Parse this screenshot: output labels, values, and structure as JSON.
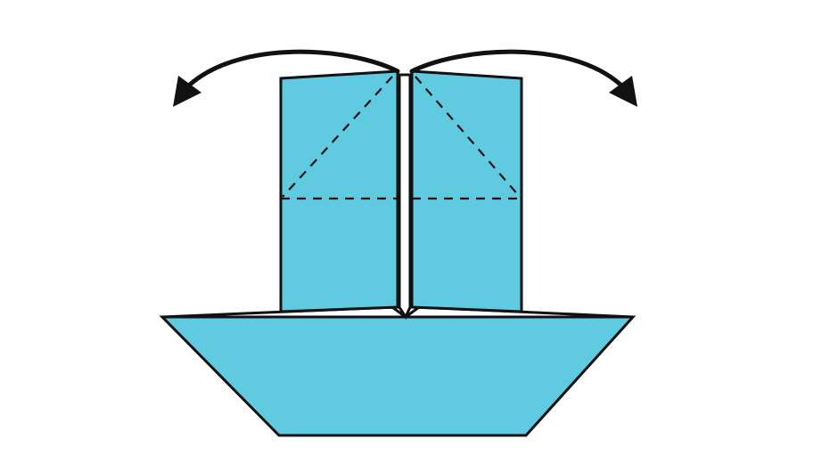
{
  "diagram": {
    "fill_color": "#5fcae0",
    "stroke_color": "#111111",
    "background": "#ffffff",
    "fold_lines": "dashed",
    "arrows": [
      "curved-arrow-left",
      "curved-arrow-right"
    ]
  }
}
